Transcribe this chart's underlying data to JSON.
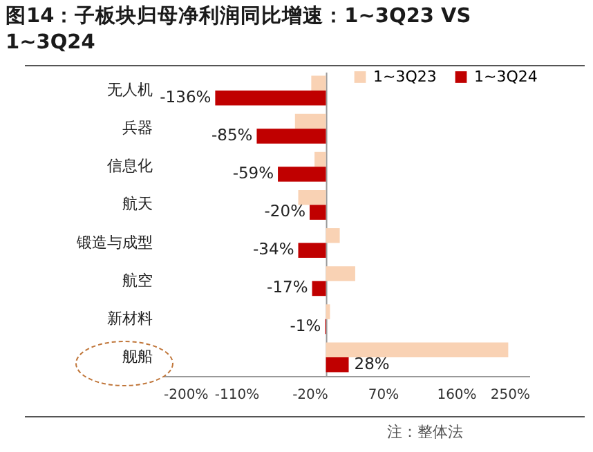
{
  "chart_data": {
    "type": "bar",
    "orientation": "horizontal",
    "title": "图14：子板块归母净利润同比增速：1~3Q23  VS  1~3Q24",
    "categories": [
      "无人机",
      "兵器",
      "信息化",
      "航天",
      "锻造与成型",
      "航空",
      "新材料",
      "舰船"
    ],
    "series": [
      {
        "name": "1~3Q23",
        "color": "#f9d2b4",
        "values": [
          -18,
          -38,
          -14,
          -34,
          17,
          36,
          5,
          224
        ]
      },
      {
        "name": "1~3Q24",
        "color": "#c00000",
        "values": [
          -136,
          -85,
          -59,
          -20,
          -34,
          -17,
          -1,
          28
        ],
        "value_labels": [
          "-136%",
          "-85%",
          "-59%",
          "-20%",
          "-34%",
          "-17%",
          "-1%",
          "28%"
        ]
      }
    ],
    "xlim": [
      -200,
      250
    ],
    "xticks": [
      {
        "value": -200,
        "label": "-200%"
      },
      {
        "value": -110,
        "label": "-110%"
      },
      {
        "value": -20,
        "label": "-20%"
      },
      {
        "value": 70,
        "label": "70%"
      },
      {
        "value": 160,
        "label": "160%"
      },
      {
        "value": 250,
        "label": "250%"
      }
    ],
    "legend": "top right",
    "grid": false,
    "annotations": [
      "注：整体法"
    ]
  }
}
